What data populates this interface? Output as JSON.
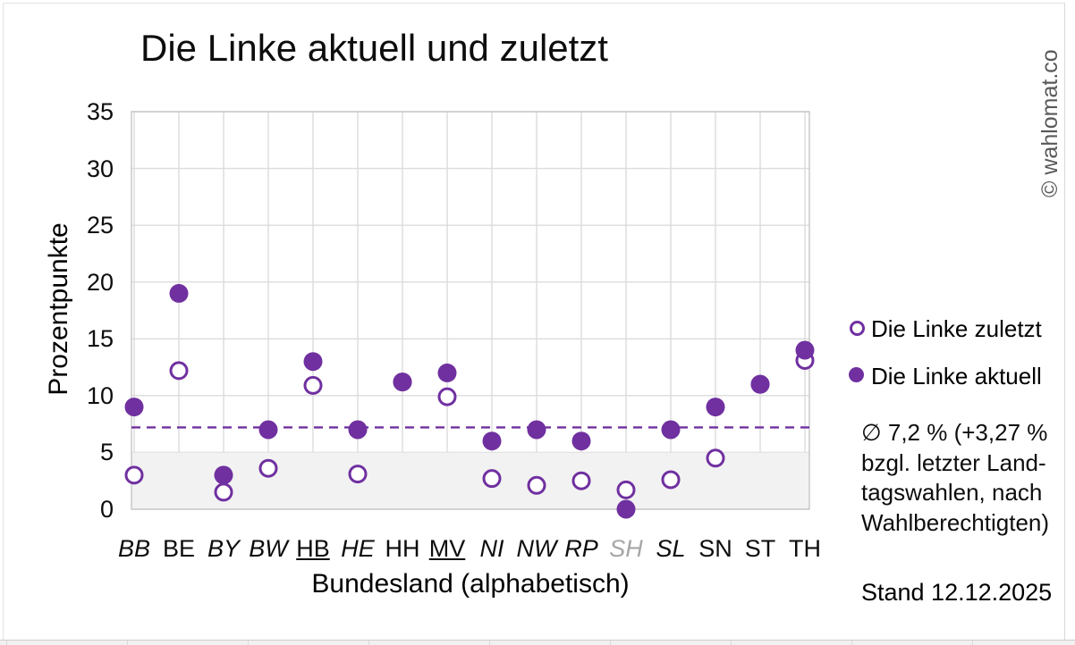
{
  "title": "Die Linke aktuell und zuletzt",
  "watermark": "© wahlomat.co",
  "stand": "Stand 12.12.2025",
  "annotation": {
    "lines": [
      "∅ 7,2 % (+3,27 %",
      "bzgl. letzter Land-",
      "tagswahlen, nach",
      "Wahlberechtigten)"
    ]
  },
  "colors": {
    "purple": "#7030A0",
    "gridline": "#DCDCDC",
    "axis": "#C6C6C6",
    "band": "#F2F2F2",
    "band_edge": "#E3E3E3",
    "muted_label": "#A6A6A6",
    "watermark": "#595959",
    "text": "#000000"
  },
  "chart_data": {
    "type": "scatter",
    "title": "Die Linke aktuell und zuletzt",
    "xlabel": "Bundesland (alphabetisch)",
    "ylabel": "Prozentpunkte",
    "ylim": [
      0,
      35
    ],
    "ytick_step": 5,
    "grid": true,
    "legend_position": "right",
    "categories": [
      "BB",
      "BE",
      "BY",
      "BW",
      "HB",
      "HE",
      "HH",
      "MV",
      "NI",
      "NW",
      "RP",
      "SH",
      "SL",
      "SN",
      "ST",
      "TH"
    ],
    "category_styles": [
      "italic",
      "normal",
      "italic",
      "italic",
      "underline",
      "italic",
      "normal",
      "underline",
      "italic",
      "italic",
      "italic",
      "italic-muted",
      "italic",
      "normal",
      "normal",
      "normal"
    ],
    "series": [
      {
        "name": "Die Linke zuletzt",
        "marker": "open",
        "values": [
          3.0,
          12.2,
          1.5,
          3.6,
          10.9,
          3.1,
          11.2,
          9.9,
          2.7,
          2.1,
          2.5,
          1.7,
          2.6,
          4.5,
          11.0,
          13.1
        ]
      },
      {
        "name": "Die Linke aktuell",
        "marker": "filled",
        "values": [
          9,
          19,
          3,
          7,
          13,
          7,
          11.2,
          12,
          6,
          7,
          6,
          0,
          7,
          9,
          11,
          14
        ]
      }
    ],
    "mean_line": {
      "value": 7.2,
      "style": "dashed"
    },
    "band": {
      "from": 0,
      "to": 5
    }
  }
}
